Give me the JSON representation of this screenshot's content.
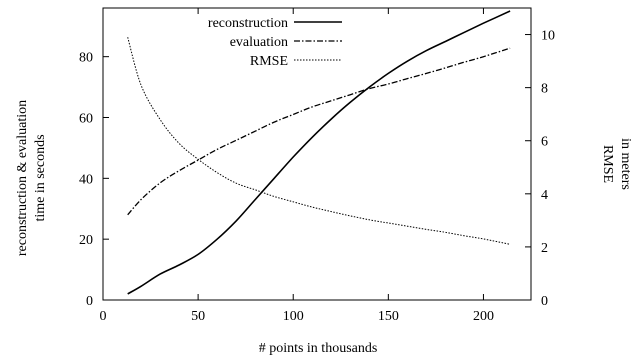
{
  "chart_data": {
    "type": "line",
    "xlabel": "# points in thousands",
    "ylabel_left": [
      "reconstruction & evaluation",
      "time in seconds"
    ],
    "ylabel_right": [
      "RMSE",
      "in meters"
    ],
    "xlim": [
      0,
      225
    ],
    "ylim_left": [
      0,
      96
    ],
    "ylim_right": [
      0,
      11
    ],
    "x_ticks": [
      0,
      50,
      100,
      150,
      200
    ],
    "y_ticks_left": [
      0,
      20,
      40,
      60,
      80
    ],
    "y_ticks_right": [
      0,
      2,
      4,
      6,
      8,
      10
    ],
    "grid": false,
    "legend_position": "top",
    "series": [
      {
        "name": "reconstruction",
        "axis": "left",
        "style": "solid",
        "x": [
          13,
          20,
          30,
          40,
          50,
          60,
          70,
          80,
          90,
          100,
          110,
          120,
          130,
          140,
          150,
          160,
          170,
          180,
          190,
          200,
          214
        ],
        "y": [
          2,
          4.5,
          8.5,
          11.5,
          15,
          20,
          26,
          33,
          40,
          47,
          53.5,
          59.5,
          65,
          70,
          74.5,
          78.5,
          82,
          85,
          88,
          91,
          95
        ]
      },
      {
        "name": "evaluation",
        "axis": "left",
        "style": "dashdot",
        "x": [
          13,
          20,
          30,
          40,
          50,
          60,
          70,
          80,
          90,
          100,
          110,
          120,
          130,
          140,
          150,
          160,
          170,
          180,
          190,
          200,
          214
        ],
        "y": [
          28,
          33,
          38.5,
          42.5,
          46,
          49.5,
          52.5,
          55.5,
          58.5,
          61,
          63.5,
          65.5,
          67.5,
          69.5,
          71,
          72.8,
          74.5,
          76.3,
          78.2,
          80,
          82.8
        ]
      },
      {
        "name": "RMSE",
        "axis": "right",
        "style": "dotted",
        "x": [
          13,
          20,
          30,
          40,
          50,
          60,
          70,
          80,
          90,
          100,
          110,
          120,
          130,
          140,
          150,
          160,
          170,
          180,
          190,
          200,
          214
        ],
        "y": [
          9.9,
          8.1,
          6.8,
          5.9,
          5.3,
          4.8,
          4.4,
          4.15,
          3.9,
          3.7,
          3.5,
          3.33,
          3.17,
          3.02,
          2.9,
          2.78,
          2.66,
          2.55,
          2.42,
          2.3,
          2.1
        ]
      }
    ]
  }
}
